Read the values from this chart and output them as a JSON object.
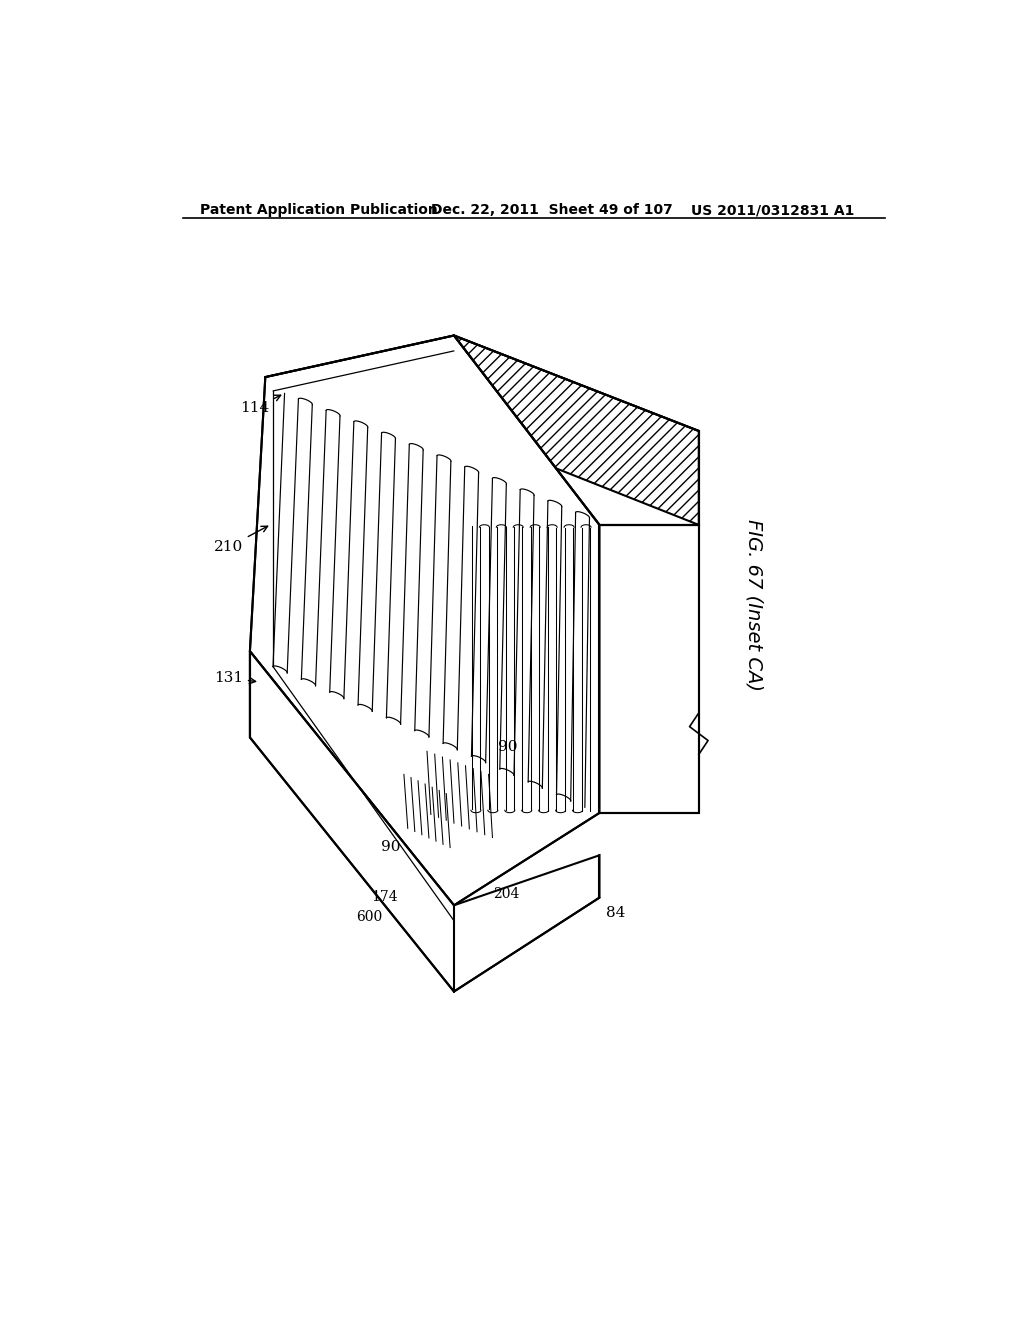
{
  "bg_color": "#ffffff",
  "line_color": "#000000",
  "header_left": "Patent Application Publication",
  "header_mid": "Dec. 22, 2011  Sheet 49 of 107",
  "header_right": "US 2011/0312831 A1",
  "fig_label": "FIG. 67 (Inset CA)"
}
